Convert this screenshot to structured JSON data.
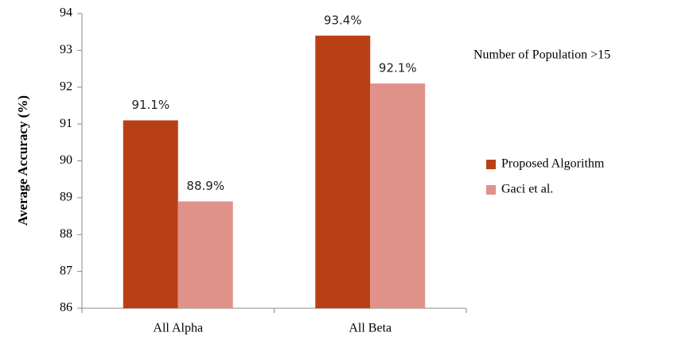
{
  "chart_data": {
    "type": "bar",
    "ylabel": "Average Accuracy (%)",
    "annotation": "Number of Population >15",
    "categories": [
      "All Alpha",
      "All Beta"
    ],
    "series": [
      {
        "name": "Proposed Algorithm",
        "color": "#b94015",
        "values": [
          91.1,
          93.4
        ],
        "value_labels": [
          "91.1%",
          "93.4%"
        ]
      },
      {
        "name": "Gaci et al.",
        "color": "#e0928a",
        "values": [
          88.9,
          92.1
        ],
        "value_labels": [
          "88.9%",
          "92.1%"
        ]
      }
    ],
    "ylim": [
      86,
      94
    ],
    "yticks": [
      86,
      87,
      88,
      89,
      90,
      91,
      92,
      93,
      94
    ],
    "grid": false,
    "legend": "right"
  }
}
